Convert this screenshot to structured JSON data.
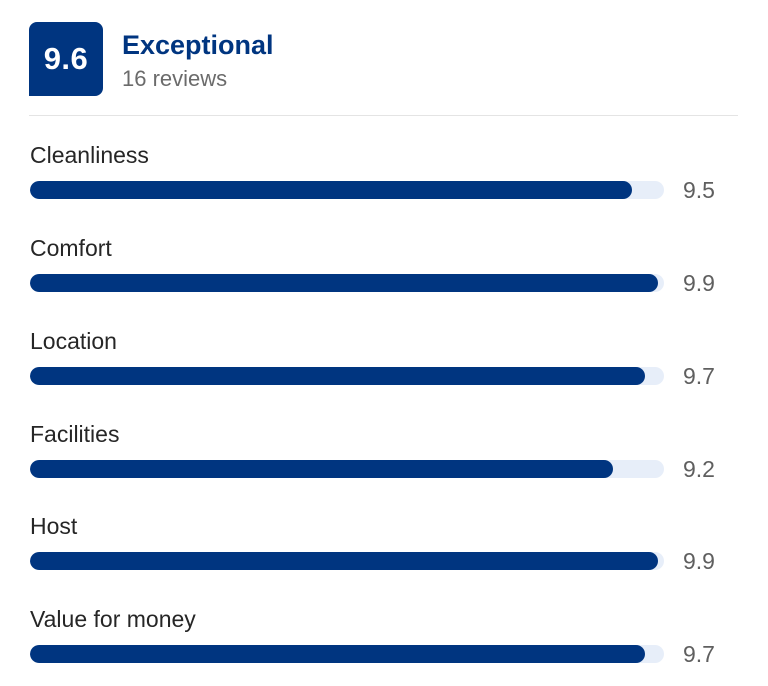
{
  "summary": {
    "score": "9.6",
    "rating_word": "Exceptional",
    "review_count": "16 reviews"
  },
  "colors": {
    "brand": "#003580",
    "track": "#e7eef9"
  },
  "categories": [
    {
      "label": "Cleanliness",
      "value": "9.5",
      "fraction": 0.95
    },
    {
      "label": "Comfort",
      "value": "9.9",
      "fraction": 0.99
    },
    {
      "label": "Location",
      "value": "9.7",
      "fraction": 0.97
    },
    {
      "label": "Facilities",
      "value": "9.2",
      "fraction": 0.92
    },
    {
      "label": "Host",
      "value": "9.9",
      "fraction": 0.99
    },
    {
      "label": "Value for money",
      "value": "9.7",
      "fraction": 0.97
    }
  ]
}
